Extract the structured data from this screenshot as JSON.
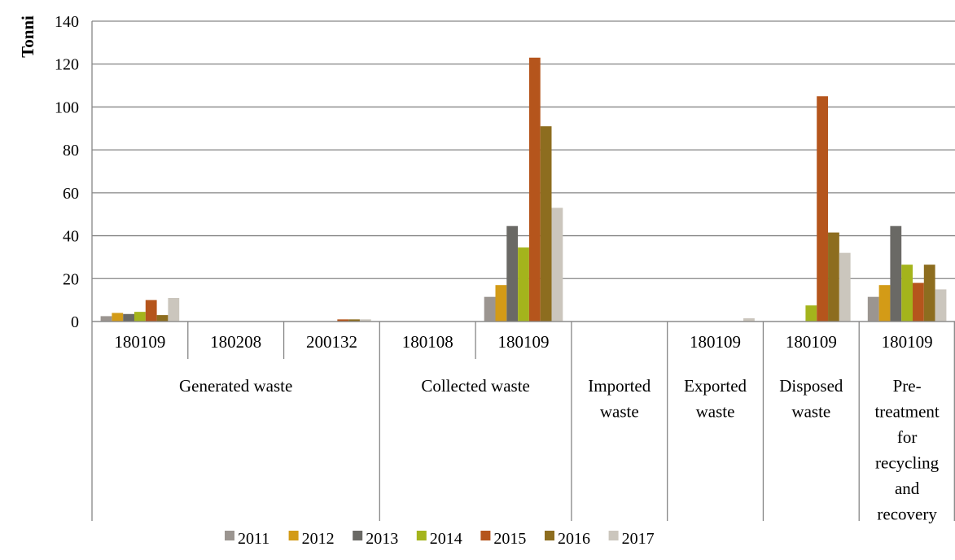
{
  "chart_data": {
    "type": "bar",
    "title": "",
    "ylabel": "Tonni",
    "ylim": [
      0,
      140
    ],
    "yticks": [
      0,
      20,
      40,
      60,
      80,
      100,
      120,
      140
    ],
    "grid": true,
    "legend_position": "bottom",
    "categories": [
      {
        "group": "Generated waste",
        "code": "180109"
      },
      {
        "group": "Generated waste",
        "code": "180208"
      },
      {
        "group": "Generated waste",
        "code": "200132"
      },
      {
        "group": "Collected waste",
        "code": "180108"
      },
      {
        "group": "Collected waste",
        "code": "180109"
      },
      {
        "group": "Imported waste",
        "code": ""
      },
      {
        "group": "Exported waste",
        "code": "180109"
      },
      {
        "group": "Disposed waste",
        "code": "180109"
      },
      {
        "group": "Pre-treatment for recycling and recovery",
        "code": "180109"
      }
    ],
    "groups": [
      {
        "label": "Generated waste",
        "lines": [
          "Generated waste"
        ]
      },
      {
        "label": "Collected waste",
        "lines": [
          "Collected waste"
        ]
      },
      {
        "label": "Imported waste",
        "lines": [
          "Imported",
          "waste"
        ]
      },
      {
        "label": "Exported waste",
        "lines": [
          "Exported",
          "waste"
        ]
      },
      {
        "label": "Disposed waste",
        "lines": [
          "Disposed",
          "waste"
        ]
      },
      {
        "label": "Pre-treatment for recycling and recovery",
        "lines": [
          "Pre-",
          "treatment",
          "for",
          "recycling",
          "and",
          "recovery"
        ]
      }
    ],
    "series": [
      {
        "name": "2011",
        "color": "#9b9590",
        "values": [
          2.5,
          0,
          0,
          0,
          11.5,
          0,
          0,
          0,
          11.5
        ]
      },
      {
        "name": "2012",
        "color": "#d39b17",
        "values": [
          4,
          0,
          0,
          0,
          17,
          0,
          0,
          0,
          17
        ]
      },
      {
        "name": "2013",
        "color": "#6a6965",
        "values": [
          3.5,
          0,
          0,
          0,
          44.5,
          0,
          0,
          0,
          44.5
        ]
      },
      {
        "name": "2014",
        "color": "#a4b41c",
        "values": [
          4.5,
          0,
          0,
          0,
          34.5,
          0,
          0,
          7.5,
          26.5
        ]
      },
      {
        "name": "2015",
        "color": "#b5551c",
        "values": [
          10,
          0,
          1,
          0,
          123,
          0,
          0,
          105,
          18
        ]
      },
      {
        "name": "2016",
        "color": "#8d6d1f",
        "values": [
          3,
          0,
          1,
          0,
          91,
          0,
          0,
          41.5,
          26.5
        ]
      },
      {
        "name": "2017",
        "color": "#cbc6bd",
        "values": [
          11,
          0,
          1,
          0,
          53,
          0,
          1.5,
          32,
          15
        ]
      }
    ]
  }
}
